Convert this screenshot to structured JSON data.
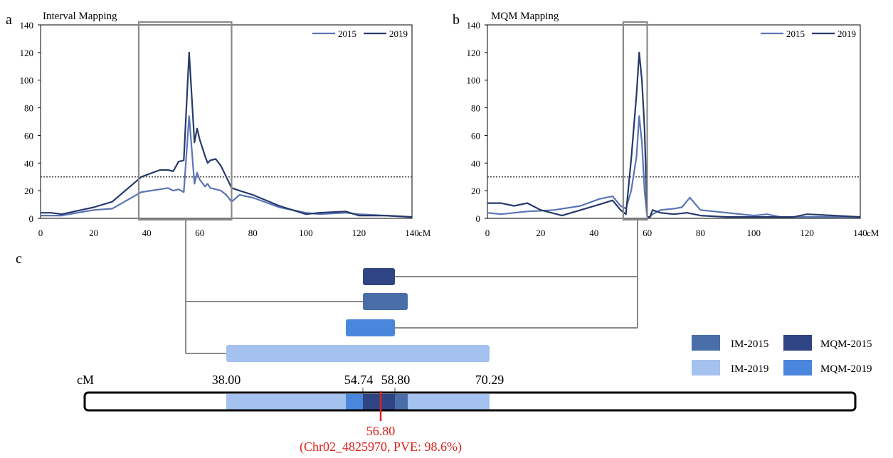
{
  "figure": {
    "panels": [
      {
        "letter": "a",
        "title": "Interval Mapping",
        "x_unit": "cM"
      },
      {
        "letter": "b",
        "title": "MQM Mapping",
        "x_unit": "cM"
      }
    ],
    "panel_c": {
      "letter": "c",
      "unit": "cM",
      "markers": [
        "38.00",
        "54.74",
        "58.80",
        "70.29"
      ],
      "peak_value": "56.80",
      "peak_caption": "(Chr02_4825970, PVE: 98.6%)",
      "legend": [
        "IM-2015",
        "MQM-2015",
        "IM-2019",
        "MQM-2019"
      ]
    }
  },
  "colors": {
    "series_2015": "#5a74b5",
    "series_2019": "#263a6b",
    "threshold": "#444444",
    "box": "#8a8a8a",
    "im_2015": "#4a6ea8",
    "mqm_2015": "#2f4583",
    "im_2019": "#a4c1ef",
    "mqm_2019": "#4a86dc",
    "peak": "#e0201b"
  },
  "chart_data": [
    {
      "type": "line",
      "title": "Interval Mapping",
      "xlabel": "cM",
      "ylabel": "",
      "xlim": [
        0,
        140
      ],
      "ylim": [
        0,
        140
      ],
      "xticks": [
        0,
        20,
        40,
        60,
        80,
        100,
        120,
        140
      ],
      "yticks": [
        0,
        20,
        40,
        60,
        80,
        100,
        120,
        140
      ],
      "threshold": 30,
      "legend_position": "top-right",
      "highlight_range": [
        37,
        72
      ],
      "series": [
        {
          "name": "2015",
          "x": [
            0,
            8,
            20,
            27,
            38,
            45,
            48,
            50,
            52,
            54,
            56,
            58,
            59,
            60,
            62,
            63,
            64,
            66,
            68,
            70,
            72,
            75,
            80,
            90,
            100,
            105,
            115,
            120,
            130,
            140
          ],
          "y": [
            2,
            2,
            6,
            7,
            19,
            21,
            22,
            20,
            21,
            19,
            74,
            25,
            33,
            28,
            23,
            25,
            22,
            21,
            20,
            17,
            12,
            17,
            15,
            8,
            4,
            3,
            4,
            3,
            2,
            1
          ]
        },
        {
          "name": "2019",
          "x": [
            0,
            4,
            8,
            20,
            27,
            38,
            45,
            48,
            50,
            52,
            54,
            56,
            58,
            59,
            60,
            62,
            63,
            64,
            66,
            68,
            70,
            72,
            75,
            80,
            90,
            100,
            105,
            115,
            120,
            130,
            140
          ],
          "y": [
            4,
            4,
            3,
            8,
            12,
            30,
            35,
            35,
            34,
            41,
            42,
            120,
            55,
            65,
            57,
            45,
            40,
            42,
            43,
            38,
            30,
            22,
            20,
            17,
            9,
            3,
            4,
            5,
            2,
            2,
            1
          ]
        }
      ]
    },
    {
      "type": "line",
      "title": "MQM Mapping",
      "xlabel": "cM",
      "ylabel": "",
      "xlim": [
        0,
        140
      ],
      "ylim": [
        0,
        140
      ],
      "xticks": [
        0,
        20,
        40,
        60,
        80,
        100,
        120,
        140
      ],
      "yticks": [
        0,
        20,
        40,
        60,
        80,
        100,
        120,
        140
      ],
      "threshold": 30,
      "legend_position": "top-right",
      "highlight_range": [
        51,
        60
      ],
      "series": [
        {
          "name": "2015",
          "x": [
            0,
            5,
            15,
            25,
            35,
            42,
            47,
            50,
            52,
            54,
            56,
            57,
            58,
            59,
            60,
            61,
            62,
            65,
            70,
            73,
            76,
            80,
            90,
            100,
            105,
            110,
            120,
            130,
            140
          ],
          "y": [
            4,
            3,
            5,
            6,
            9,
            14,
            16,
            9,
            7,
            20,
            45,
            74,
            55,
            20,
            1,
            1,
            3,
            6,
            7,
            8,
            15,
            6,
            4,
            2,
            3,
            1,
            1,
            1,
            1
          ]
        },
        {
          "name": "2019",
          "x": [
            0,
            5,
            10,
            15,
            20,
            28,
            35,
            42,
            47,
            50,
            52,
            54,
            56,
            57,
            58,
            59,
            60,
            61,
            62,
            65,
            70,
            75,
            80,
            90,
            100,
            110,
            115,
            120,
            130,
            140
          ],
          "y": [
            11,
            11,
            9,
            11,
            6,
            2,
            6,
            10,
            13,
            6,
            3,
            43,
            90,
            120,
            100,
            65,
            1,
            1,
            6,
            4,
            3,
            4,
            2,
            1,
            1,
            1,
            1,
            3,
            2,
            1
          ]
        }
      ]
    }
  ]
}
